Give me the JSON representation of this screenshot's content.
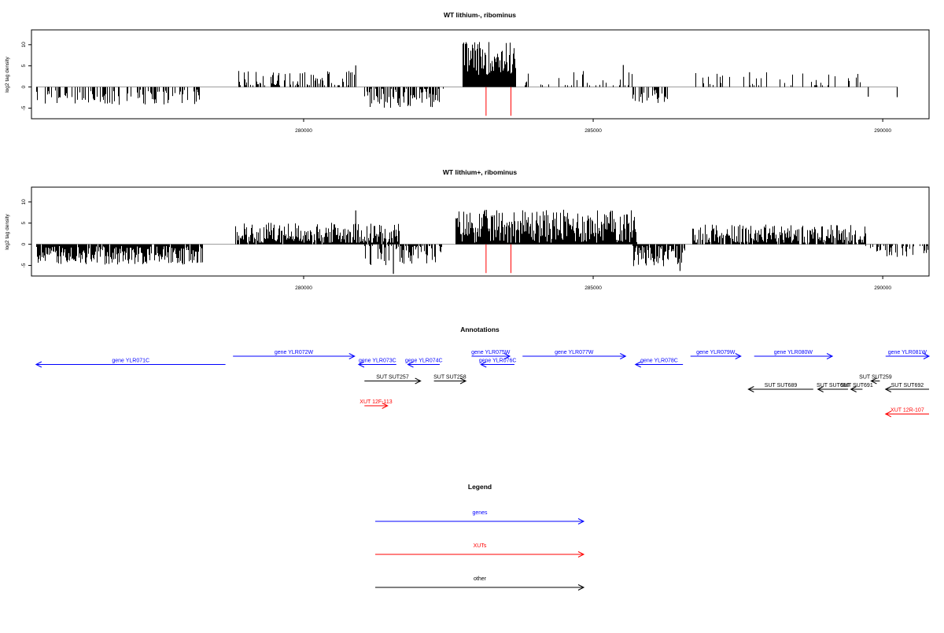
{
  "chart_data": [
    {
      "type": "bar",
      "title": "WT lithium-, ribominus",
      "ylabel": "log2 tag density",
      "xlabel": "",
      "xlim": [
        275300,
        290800
      ],
      "ylim": [
        -7.5,
        13.5
      ],
      "x_ticks": [
        280000,
        285000,
        290000
      ],
      "y_ticks": [
        -5,
        0,
        5,
        10
      ],
      "markers_x": [
        283150,
        283580
      ],
      "segments": [
        {
          "start": 275380,
          "end": 278250,
          "sign": -1,
          "avg": 2.4,
          "amp": 1.8,
          "density": 0.42
        },
        {
          "start": 278820,
          "end": 280900,
          "sign": 1,
          "avg": 1.8,
          "amp": 2.0,
          "density": 0.38
        },
        {
          "start": 281050,
          "end": 282400,
          "sign": -1,
          "avg": 2.5,
          "amp": 2.8,
          "density": 0.6
        },
        {
          "start": 282740,
          "end": 283660,
          "sign": 1,
          "avg": 6.8,
          "amp": 4.0,
          "density": 1.0
        },
        {
          "start": 283750,
          "end": 285700,
          "sign": 1,
          "avg": 1.6,
          "amp": 2.2,
          "density": 0.22
        },
        {
          "start": 285680,
          "end": 286300,
          "sign": -1,
          "avg": 2.2,
          "amp": 1.8,
          "density": 0.45
        },
        {
          "start": 286700,
          "end": 289600,
          "sign": 1,
          "avg": 1.5,
          "amp": 2.0,
          "density": 0.16
        }
      ],
      "spikes": [
        {
          "x": 280900,
          "y": 5.1
        },
        {
          "x": 285520,
          "y": 5.2
        },
        {
          "x": 289750,
          "y": -2.3
        },
        {
          "x": 290250,
          "y": -2.4
        },
        {
          "x": 287700,
          "y": 3.5
        }
      ]
    },
    {
      "type": "bar",
      "title": "WT lithium+, ribominus",
      "ylabel": "log2 tag density",
      "xlabel": "",
      "xlim": [
        275300,
        290800
      ],
      "ylim": [
        -7.5,
        13.5
      ],
      "x_ticks": [
        280000,
        285000,
        290000
      ],
      "y_ticks": [
        -5,
        0,
        5,
        10
      ],
      "markers_x": [
        283150,
        283580
      ],
      "segments": [
        {
          "start": 275380,
          "end": 278250,
          "sign": -1,
          "avg": 2.6,
          "amp": 2.2,
          "density": 0.95
        },
        {
          "start": 278820,
          "end": 281650,
          "sign": 1,
          "avg": 2.5,
          "amp": 2.6,
          "density": 0.95
        },
        {
          "start": 281050,
          "end": 282400,
          "sign": -1,
          "avg": 2.3,
          "amp": 2.8,
          "density": 0.7
        },
        {
          "start": 282620,
          "end": 285750,
          "sign": 1,
          "avg": 4.2,
          "amp": 4.0,
          "density": 1.0
        },
        {
          "start": 285680,
          "end": 286580,
          "sign": -1,
          "avg": 2.6,
          "amp": 2.8,
          "density": 0.85
        },
        {
          "start": 286700,
          "end": 289700,
          "sign": 1,
          "avg": 2.3,
          "amp": 2.4,
          "density": 0.85
        },
        {
          "start": 289700,
          "end": 290800,
          "sign": -1,
          "avg": 1.4,
          "amp": 1.6,
          "density": 0.35
        }
      ],
      "spikes": [
        {
          "x": 280900,
          "y": 8.0
        },
        {
          "x": 281550,
          "y": -7.0
        },
        {
          "x": 286500,
          "y": -6.3
        }
      ]
    }
  ],
  "annotations": {
    "title": "Annotations",
    "xlim": [
      275300,
      290800
    ],
    "items": [
      {
        "label": "gene YLR071C",
        "start": 275380,
        "end": 278650,
        "dir": "left",
        "color": "#0000ff",
        "row": 1
      },
      {
        "label": "gene YLR072W",
        "start": 278780,
        "end": 280880,
        "dir": "right",
        "color": "#0000ff",
        "row": 0
      },
      {
        "label": "gene YLR073C",
        "start": 280950,
        "end": 281600,
        "dir": "left",
        "color": "#0000ff",
        "row": 1
      },
      {
        "label": "gene YLR074C",
        "start": 281800,
        "end": 282350,
        "dir": "left",
        "color": "#0000ff",
        "row": 1
      },
      {
        "label": "gene YLR075W",
        "start": 282900,
        "end": 283560,
        "dir": "right",
        "color": "#0000ff",
        "row": 0
      },
      {
        "label": "gene YLR076C",
        "start": 283060,
        "end": 283640,
        "dir": "left",
        "color": "#0000ff",
        "row": 1
      },
      {
        "label": "gene YLR077W",
        "start": 283780,
        "end": 285560,
        "dir": "right",
        "color": "#0000ff",
        "row": 0
      },
      {
        "label": "gene YLR078C",
        "start": 285730,
        "end": 286550,
        "dir": "left",
        "color": "#0000ff",
        "row": 1
      },
      {
        "label": "gene YLR079W",
        "start": 286680,
        "end": 287550,
        "dir": "right",
        "color": "#0000ff",
        "row": 0
      },
      {
        "label": "gene YLR080W",
        "start": 287780,
        "end": 289130,
        "dir": "right",
        "color": "#0000ff",
        "row": 0
      },
      {
        "label": "gene YLR081W",
        "start": 290050,
        "end": 290800,
        "dir": "right",
        "color": "#0000ff",
        "row": 0
      },
      {
        "label": "SUT SUT257",
        "start": 281050,
        "end": 282020,
        "dir": "right",
        "color": "#000000",
        "row": 3
      },
      {
        "label": "SUT SUT258",
        "start": 282250,
        "end": 282800,
        "dir": "right",
        "color": "#000000",
        "row": 3
      },
      {
        "label": "SUT SUT259",
        "start": 289800,
        "end": 289950,
        "dir": "left",
        "color": "#000000",
        "row": 3
      },
      {
        "label": "SUT SUT689",
        "start": 287680,
        "end": 288800,
        "dir": "left",
        "color": "#000000",
        "row": 4
      },
      {
        "label": "SUT SUT690",
        "start": 288880,
        "end": 289400,
        "dir": "left",
        "color": "#000000",
        "row": 4
      },
      {
        "label": "SUT SUT691",
        "start": 289450,
        "end": 289650,
        "dir": "left",
        "color": "#000000",
        "row": 4
      },
      {
        "label": "SUT SUT692",
        "start": 290050,
        "end": 290800,
        "dir": "left",
        "color": "#000000",
        "row": 4
      },
      {
        "label": "XUT 12F-113",
        "start": 281050,
        "end": 281450,
        "dir": "right",
        "color": "#ff0000",
        "row": 6
      },
      {
        "label": "XUT 12R-107",
        "start": 290050,
        "end": 290800,
        "dir": "left",
        "color": "#ff0000",
        "row": 7
      }
    ]
  },
  "legend": {
    "title": "Legend",
    "items": [
      {
        "label": "genes",
        "color": "#0000ff"
      },
      {
        "label": "XUTs",
        "color": "#ff0000"
      },
      {
        "label": "other",
        "color": "#000000"
      }
    ]
  }
}
